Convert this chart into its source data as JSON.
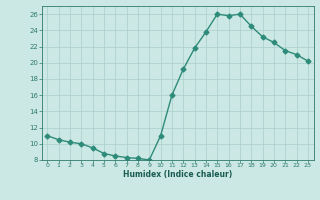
{
  "x": [
    0,
    1,
    2,
    3,
    4,
    5,
    6,
    7,
    8,
    9,
    10,
    11,
    12,
    13,
    14,
    15,
    16,
    17,
    18,
    19,
    20,
    21,
    22,
    23
  ],
  "y": [
    11,
    10.5,
    10.2,
    10,
    9.5,
    8.8,
    8.5,
    8.3,
    8.2,
    8.0,
    11,
    16,
    19.2,
    21.8,
    23.8,
    26.0,
    25.8,
    26.0,
    24.5,
    23.2,
    22.5,
    21.5,
    21.0,
    20.2
  ],
  "line_color": "#2e8b7a",
  "marker": "D",
  "markersize": 2.5,
  "linewidth": 1.0,
  "bg_color": "#cce8e4",
  "grid_color": "#aacfcc",
  "xlabel": "Humidex (Indice chaleur)",
  "ylim": [
    8,
    27
  ],
  "yticks": [
    8,
    10,
    12,
    14,
    16,
    18,
    20,
    22,
    24,
    26
  ],
  "xticks": [
    0,
    1,
    2,
    3,
    4,
    5,
    6,
    7,
    8,
    9,
    10,
    11,
    12,
    13,
    14,
    15,
    16,
    17,
    18,
    19,
    20,
    21,
    22,
    23
  ],
  "tick_color": "#2e7b6e",
  "axis_color": "#2e7b6e",
  "label_color": "#1a5c52"
}
